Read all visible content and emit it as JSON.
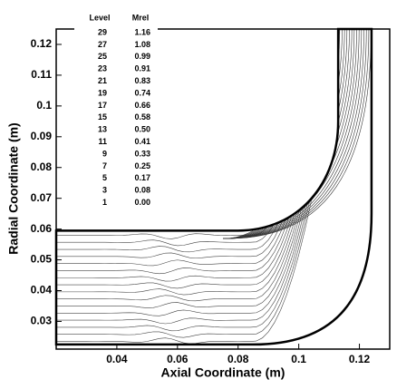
{
  "chart_data": {
    "type": "contour",
    "x_label": "Axial Coordinate (m)",
    "y_label": "Radial Coordinate (m)",
    "xlim": [
      0.02,
      0.13
    ],
    "xticks": [
      0.04,
      0.06,
      0.08,
      0.1,
      0.12
    ],
    "ylim": [
      0.021,
      0.125
    ],
    "yticks": [
      0.03,
      0.04,
      0.05,
      0.06,
      0.07,
      0.08,
      0.09,
      0.1,
      0.11,
      0.12
    ],
    "legend": {
      "headers": [
        "Level",
        "Mrel"
      ],
      "levels": [
        29,
        27,
        25,
        23,
        21,
        19,
        17,
        15,
        13,
        11,
        9,
        7,
        5,
        3,
        1
      ],
      "values": [
        1.16,
        1.08,
        0.99,
        0.91,
        0.83,
        0.74,
        0.66,
        0.58,
        {
          "value": 0.5,
          "label": "0.50"
        },
        0.41,
        0.33,
        0.25,
        0.17,
        0.08,
        {
          "value": 0,
          "label": "0.00"
        }
      ]
    },
    "color": "#000000"
  }
}
